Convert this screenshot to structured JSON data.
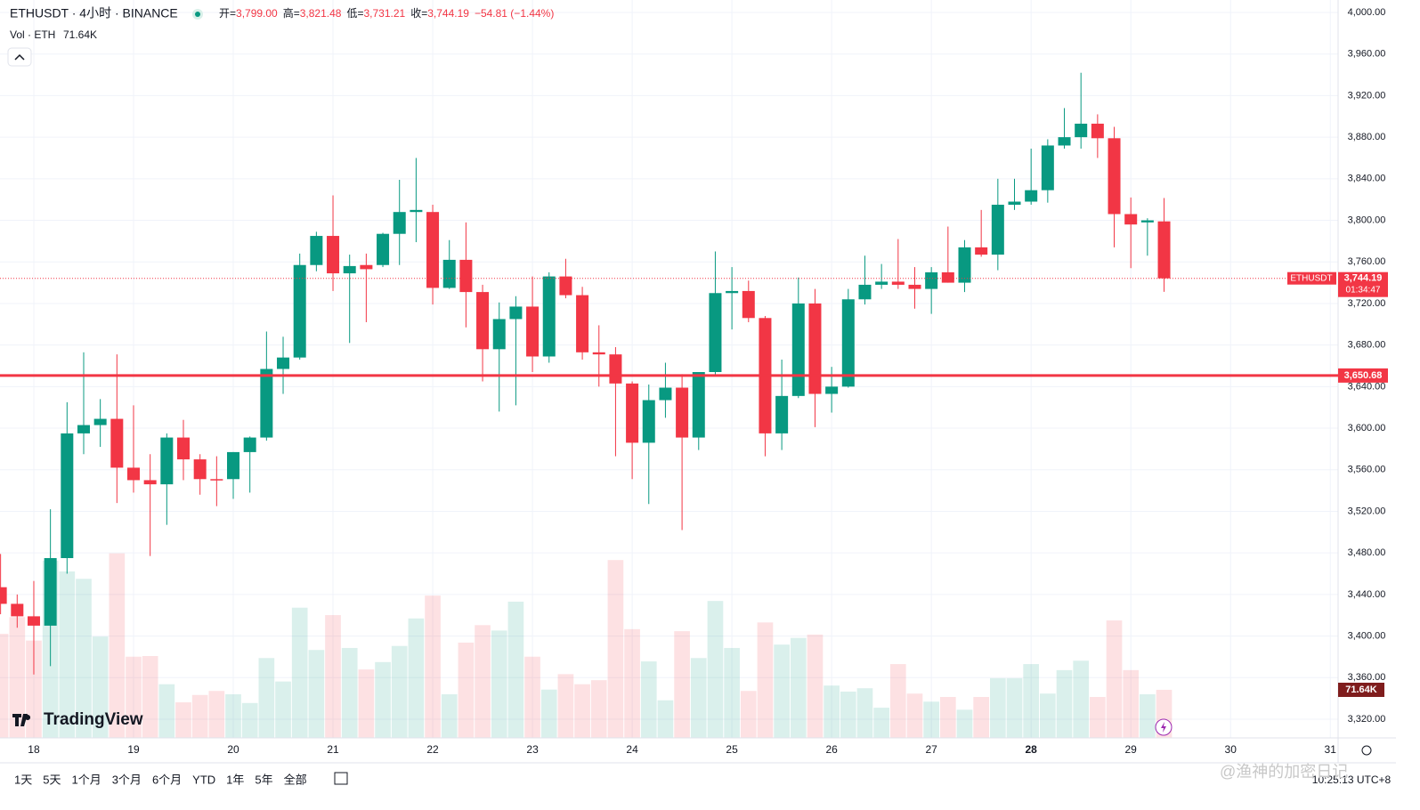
{
  "chart_data": {
    "type": "candlestick",
    "symbol": "ETHUSDT · 4小时 · BINANCE",
    "header_values": [
      {
        "label": "开=",
        "value": "3,799.00"
      },
      {
        "label": "高=",
        "value": "3,821.48"
      },
      {
        "label": "低=",
        "value": "3,731.21"
      },
      {
        "label": "收=",
        "value": "3,744.19"
      },
      {
        "label": "",
        "value": "−54.81 (−1.44%)"
      }
    ],
    "volume_title": "Vol · ETH",
    "volume_last_label": "71.64K",
    "up_color": "#089981",
    "down_color": "#f23645",
    "grid": true,
    "categories": [
      null,
      null,
      "18",
      null,
      null,
      null,
      null,
      null,
      "19",
      null,
      null,
      null,
      null,
      null,
      "20",
      null,
      null,
      null,
      null,
      null,
      "21",
      null,
      null,
      null,
      null,
      null,
      "22",
      null,
      null,
      null,
      null,
      null,
      "23",
      null,
      null,
      null,
      null,
      null,
      "24",
      null,
      null,
      null,
      null,
      null,
      "25",
      null,
      null,
      null,
      null,
      null,
      "26",
      null,
      null,
      null,
      null,
      null,
      "27",
      null,
      null,
      null,
      null,
      null,
      "28",
      null,
      null,
      null,
      null,
      null,
      "29",
      null,
      null,
      null,
      null,
      null,
      "30",
      null,
      null,
      null,
      null,
      null,
      "31"
    ],
    "open": [
      3447,
      3431,
      3419,
      3410,
      3475,
      3595,
      3603,
      3609,
      3562,
      3550,
      3546,
      3591,
      3570,
      3551,
      3551,
      3577,
      3591,
      3657,
      3668,
      3757,
      3785,
      3749,
      3757,
      3757,
      3787,
      3808,
      3808,
      3735,
      3762,
      3731,
      3676,
      3705,
      3717,
      3669,
      3746,
      3728,
      3673,
      3671,
      3643,
      3586,
      3627,
      3639,
      3591,
      3654,
      3730,
      3732,
      3706,
      3595,
      3631,
      3720,
      3633,
      3640,
      3724,
      3738,
      3741,
      3738,
      3734,
      3750,
      3740,
      3774,
      3767,
      3815,
      3818,
      3829,
      3872,
      3880,
      3893,
      3879,
      3806,
      3798,
      3799,
      null,
      null,
      null,
      null,
      null,
      null,
      null,
      null,
      null,
      null
    ],
    "high": [
      3479,
      3440,
      3453,
      3522,
      3625,
      3673,
      3628,
      3671,
      3622,
      3575,
      3595,
      3608,
      3575,
      3573,
      3577,
      3592,
      3693,
      3688,
      3768,
      3789,
      3824,
      3767,
      3768,
      3788,
      3839,
      3860,
      3815,
      3781,
      3798,
      3738,
      3721,
      3727,
      3746,
      3750,
      3763,
      3736,
      3699,
      3678,
      3645,
      3642,
      3663,
      3652,
      3654,
      3770,
      3755,
      3742,
      3708,
      3666,
      3745,
      3734,
      3659,
      3734,
      3766,
      3758,
      3782,
      3755,
      3755,
      3794,
      3781,
      3810,
      3840,
      3840,
      3869,
      3878,
      3908,
      3942,
      3902,
      3890,
      3822,
      3802,
      3821.48,
      null,
      null,
      null,
      null,
      null,
      null,
      null,
      null,
      null,
      null
    ],
    "low": [
      3421,
      3408,
      3363,
      3371,
      3460,
      3575,
      3582,
      3528,
      3538,
      3477,
      3507,
      3550,
      3536,
      3525,
      3532,
      3538,
      3588,
      3633,
      3666,
      3751,
      3732,
      3682,
      3702,
      3755,
      3757,
      3779,
      3719,
      3734,
      3697,
      3645,
      3616,
      3622,
      3654,
      3663,
      3725,
      3666,
      3640,
      3573,
      3551,
      3527,
      3610,
      3502,
      3579,
      3651,
      3695,
      3702,
      3573,
      3579,
      3629,
      3601,
      3615,
      3639,
      3719,
      3734,
      3734,
      3715,
      3710,
      3740,
      3731,
      3765,
      3752,
      3810,
      3815,
      3817,
      3869,
      3869,
      3860,
      3774,
      3754,
      3766,
      3731.21,
      null,
      null,
      null,
      null,
      null,
      null,
      null,
      null,
      null,
      null
    ],
    "close": [
      3431,
      3419,
      3410,
      3475,
      3595,
      3603,
      3609,
      3562,
      3550,
      3546,
      3591,
      3570,
      3551,
      3550,
      3577,
      3591,
      3657,
      3668,
      3757,
      3785,
      3749,
      3756,
      3753,
      3787,
      3808,
      3810,
      3735,
      3762,
      3731,
      3676,
      3705,
      3717,
      3669,
      3746,
      3728,
      3673,
      3671,
      3643,
      3586,
      3627,
      3639,
      3591,
      3654,
      3730,
      3732,
      3706,
      3595,
      3631,
      3720,
      3633,
      3640,
      3724,
      3738,
      3741,
      3738,
      3734,
      3750,
      3740,
      3774,
      3767,
      3815,
      3818,
      3829,
      3872,
      3880,
      3893,
      3879,
      3806,
      3796,
      3800,
      3744.19,
      null,
      null,
      null,
      null,
      null,
      null,
      null,
      null,
      null,
      null
    ],
    "volume": {
      "values": [
        155,
        180,
        145,
        264,
        248,
        237,
        151,
        275,
        121,
        122,
        80,
        53,
        64,
        70,
        65,
        52,
        119,
        84,
        194,
        131,
        183,
        134,
        102,
        113,
        137,
        178,
        212,
        65,
        142,
        168,
        160,
        203,
        121,
        72,
        95,
        80,
        86,
        265,
        162,
        114,
        56,
        159,
        119,
        204,
        134,
        70,
        172,
        139,
        149,
        154,
        78,
        69,
        74,
        45,
        110,
        66,
        54,
        61,
        42,
        61,
        89,
        89,
        110,
        66,
        101,
        115,
        61,
        175,
        101,
        65,
        71.64,
        null,
        null,
        null,
        null,
        null,
        null,
        null,
        null,
        null,
        null
      ]
    },
    "ylim": [
      3302,
      4012
    ],
    "yticks": [
      {
        "value": 3320,
        "label": "3,320.00"
      },
      {
        "value": 3360,
        "label": "3,360.00"
      },
      {
        "value": 3400,
        "label": "3,400.00"
      },
      {
        "value": 3440,
        "label": "3,440.00"
      },
      {
        "value": 3480,
        "label": "3,480.00"
      },
      {
        "value": 3520,
        "label": "3,520.00"
      },
      {
        "value": 3560,
        "label": "3,560.00"
      },
      {
        "value": 3600,
        "label": "3,600.00"
      },
      {
        "value": 3640,
        "label": "3,640.00"
      },
      {
        "value": 3680,
        "label": "3,680.00"
      },
      {
        "value": 3720,
        "label": "3,720.00"
      },
      {
        "value": 3760,
        "label": "3,760.00"
      },
      {
        "value": 3800,
        "label": "3,800.00"
      },
      {
        "value": 3840,
        "label": "3,840.00"
      },
      {
        "value": 3880,
        "label": "3,880.00"
      },
      {
        "value": 3920,
        "label": "3,920.00"
      },
      {
        "value": 3960,
        "label": "3,960.00"
      },
      {
        "value": 4000,
        "label": "4,000.00"
      }
    ],
    "hline": {
      "value": 3650.68,
      "label": "3,650.68",
      "color": "#f23645"
    },
    "last_price": {
      "name": "ETHUSDT",
      "value": 3744.19,
      "label": "3,744.19",
      "countdown": "01:34:47"
    },
    "brand": "TradingView",
    "ranges": [
      "1天",
      "5天",
      "1个月",
      "3个月",
      "6个月",
      "YTD",
      "1年",
      "5年",
      "全部"
    ],
    "clock": "10:25:13 UTC+8",
    "watermark": "@渔神的加密日记"
  }
}
